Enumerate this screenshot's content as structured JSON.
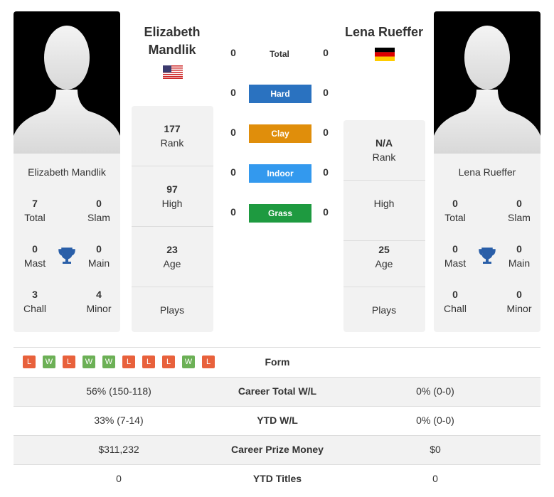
{
  "players": [
    {
      "name": "Elizabeth Mandlik",
      "rank": 177,
      "rank_label": "Rank",
      "high": 97,
      "high_label": "High",
      "age": 23,
      "age_label": "Age",
      "plays_label": "Plays",
      "stats": [
        {
          "value": 7,
          "label": "Total"
        },
        {
          "value": 0,
          "label": "Slam"
        },
        {
          "value": 0,
          "label": "Mast"
        },
        {
          "value": 0,
          "label": "Main"
        },
        {
          "value": 3,
          "label": "Chall"
        },
        {
          "value": 4,
          "label": "Minor"
        }
      ]
    },
    {
      "name": "Lena Rueffer",
      "rank": "N/A",
      "rank_label": "Rank",
      "high_label": "High",
      "age": 25,
      "age_label": "Age",
      "plays_label": "Plays",
      "stats": [
        {
          "value": 0,
          "label": "Total"
        },
        {
          "value": 0,
          "label": "Slam"
        },
        {
          "value": 0,
          "label": "Mast"
        },
        {
          "value": 0,
          "label": "Main"
        },
        {
          "value": 0,
          "label": "Chall"
        },
        {
          "value": 0,
          "label": "Minor"
        }
      ]
    }
  ],
  "surfaces": [
    {
      "name": "Total",
      "p1": 0,
      "p2": 0
    },
    {
      "name": "Hard",
      "p1": 0,
      "p2": 0,
      "color": "#2a72c0"
    },
    {
      "name": "Clay",
      "p1": 0,
      "p2": 0,
      "color": "#e08e0b"
    },
    {
      "name": "Indoor",
      "p1": 0,
      "p2": 0,
      "color": "#3399ee"
    },
    {
      "name": "Grass",
      "p1": 0,
      "p2": 0,
      "color": "#1e9a40"
    }
  ],
  "form": [
    "L",
    "W",
    "L",
    "W",
    "W",
    "L",
    "L",
    "L",
    "W",
    "L"
  ],
  "form_colors": {
    "L": "#e8613c",
    "W": "#6cb056"
  },
  "table": {
    "form_label": "Form",
    "rows": [
      [
        "56% (150-118)",
        "Career Total W/L",
        "0% (0-0)"
      ],
      [
        "33% (7-14)",
        "YTD W/L",
        "0% (0-0)"
      ],
      [
        "$311,232",
        "Career Prize Money",
        "$0"
      ],
      [
        0,
        "YTD Titles",
        0
      ]
    ]
  }
}
